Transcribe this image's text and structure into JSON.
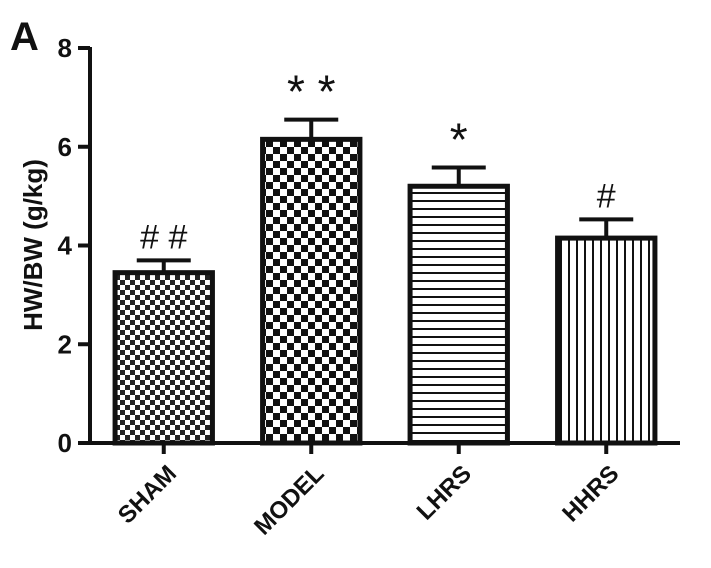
{
  "panel_label": "A",
  "chart_data": {
    "type": "bar",
    "title": "",
    "xlabel": "",
    "ylabel": "HW/BW (g/kg)",
    "ylim": [
      0,
      8
    ],
    "yticks": [
      0,
      2,
      4,
      6,
      8
    ],
    "grid": false,
    "categories": [
      "SHAM",
      "MODEL",
      "LHRS",
      "HHRS"
    ],
    "values": [
      3.45,
      6.15,
      5.2,
      4.15
    ],
    "errors": [
      0.25,
      0.4,
      0.38,
      0.38
    ],
    "annotations": [
      "# #",
      "* *",
      "*",
      "#"
    ],
    "fill_patterns": [
      "fine-checkerboard",
      "checkerboard",
      "horizontal-lines",
      "vertical-lines"
    ]
  }
}
